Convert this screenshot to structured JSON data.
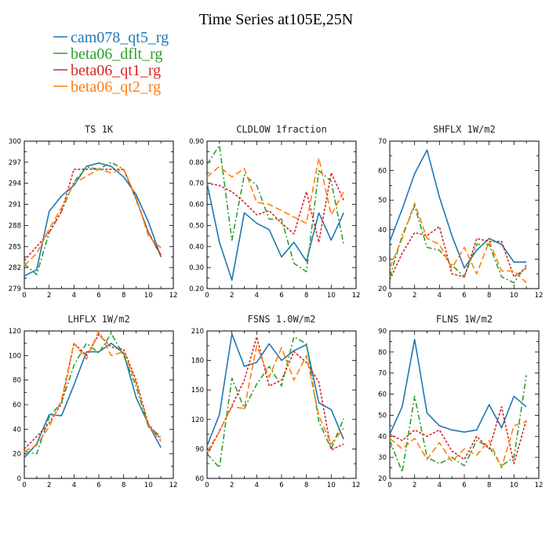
{
  "figure_title": "Time Series at105E,25N",
  "chart_data": [
    {
      "type": "line",
      "title": "TS",
      "unit": "1K",
      "xlim": [
        0,
        12
      ],
      "xticks": [
        0,
        2,
        4,
        6,
        8,
        10,
        12
      ],
      "ylim": [
        279,
        300
      ],
      "yticks": [
        279,
        282,
        285,
        288,
        291,
        294,
        297,
        300
      ],
      "x": [
        0,
        1,
        2,
        3,
        4,
        5,
        6,
        7,
        8,
        9,
        10,
        11
      ],
      "series": [
        {
          "name": "cam078_qt5_rg",
          "color": "#1f77b4",
          "dash": "",
          "values": [
            280.8,
            281.7,
            290.0,
            292.2,
            293.7,
            296.4,
            296.9,
            296.4,
            294.9,
            292.4,
            288.5,
            283.5
          ]
        },
        {
          "name": "beta06_dflt_rg",
          "color": "#2ca02c",
          "dash": "7,3,2,3",
          "values": [
            282.5,
            281.0,
            287.0,
            290.0,
            294.2,
            296.3,
            296.0,
            297.0,
            296.0,
            291.7,
            287.0,
            283.6
          ]
        },
        {
          "name": "beta06_qt1_rg",
          "color": "#d62728",
          "dash": "3,2",
          "values": [
            283.0,
            285.0,
            287.0,
            290.0,
            296.0,
            296.0,
            296.0,
            296.0,
            296.0,
            291.8,
            287.0,
            283.8
          ]
        },
        {
          "name": "beta06_qt2_rg",
          "color": "#ff7f0e",
          "dash": "8,4",
          "values": [
            282.3,
            284.0,
            287.5,
            290.5,
            294.0,
            295.0,
            296.0,
            295.5,
            296.0,
            292.0,
            286.5,
            284.8
          ]
        }
      ]
    },
    {
      "type": "line",
      "title": "CLDLOW",
      "unit": "1fraction",
      "xlim": [
        0,
        12
      ],
      "xticks": [
        0,
        2,
        4,
        6,
        8,
        10,
        12
      ],
      "ylim": [
        0.2,
        0.9
      ],
      "yticks": [
        "0.20",
        "0.30",
        "0.40",
        "0.50",
        "0.60",
        "0.70",
        "0.80",
        "0.90"
      ],
      "x": [
        0,
        1,
        2,
        3,
        4,
        5,
        6,
        7,
        8,
        9,
        10,
        11
      ],
      "series": [
        {
          "name": "cam078_qt5_rg",
          "color": "#1f77b4",
          "dash": "",
          "values": [
            0.7,
            0.42,
            0.24,
            0.56,
            0.51,
            0.48,
            0.35,
            0.42,
            0.33,
            0.56,
            0.43,
            0.56
          ]
        },
        {
          "name": "beta06_dflt_rg",
          "color": "#2ca02c",
          "dash": "7,3,2,3",
          "values": [
            0.79,
            0.88,
            0.43,
            0.74,
            0.69,
            0.53,
            0.53,
            0.32,
            0.28,
            0.76,
            0.71,
            0.41
          ]
        },
        {
          "name": "beta06_qt1_rg",
          "color": "#d62728",
          "dash": "3,2",
          "values": [
            0.7,
            0.69,
            0.66,
            0.61,
            0.55,
            0.57,
            0.51,
            0.46,
            0.66,
            0.42,
            0.75,
            0.62
          ]
        },
        {
          "name": "beta06_qt2_rg",
          "color": "#ff7f0e",
          "dash": "8,4",
          "values": [
            0.73,
            0.78,
            0.73,
            0.77,
            0.61,
            0.6,
            0.57,
            0.54,
            0.51,
            0.82,
            0.55,
            0.66
          ]
        }
      ]
    },
    {
      "type": "line",
      "title": "SHFLX",
      "unit": "1W/m2",
      "xlim": [
        0,
        12
      ],
      "xticks": [
        0,
        2,
        4,
        6,
        8,
        10,
        12
      ],
      "ylim": [
        20,
        70
      ],
      "yticks": [
        20,
        30,
        40,
        50,
        60,
        70
      ],
      "x": [
        0,
        1,
        2,
        3,
        4,
        5,
        6,
        7,
        8,
        9,
        10,
        11
      ],
      "series": [
        {
          "name": "cam078_qt5_rg",
          "color": "#1f77b4",
          "dash": "",
          "values": [
            36,
            47,
            59,
            67,
            51,
            38,
            27,
            33,
            37,
            35,
            29,
            29
          ]
        },
        {
          "name": "beta06_dflt_rg",
          "color": "#2ca02c",
          "dash": "7,3,2,3",
          "values": [
            24,
            38,
            48,
            34,
            33,
            28,
            24,
            35,
            35,
            24,
            22,
            28
          ]
        },
        {
          "name": "beta06_qt1_rg",
          "color": "#d62728",
          "dash": "3,2",
          "values": [
            23,
            32,
            39,
            38,
            41,
            25,
            24,
            37,
            36,
            36,
            24,
            27
          ]
        },
        {
          "name": "beta06_qt2_rg",
          "color": "#ff7f0e",
          "dash": "8,4",
          "values": [
            27,
            37,
            49,
            37,
            35,
            27,
            34,
            25,
            36,
            26,
            26,
            22
          ]
        }
      ]
    },
    {
      "type": "line",
      "title": "LHFLX",
      "unit": "1W/m2",
      "xlim": [
        0,
        12
      ],
      "xticks": [
        0,
        2,
        4,
        6,
        8,
        10,
        12
      ],
      "ylim": [
        0,
        120
      ],
      "yticks": [
        0,
        20,
        40,
        60,
        80,
        100,
        120
      ],
      "x": [
        0,
        1,
        2,
        3,
        4,
        5,
        6,
        7,
        8,
        9,
        10,
        11
      ],
      "series": [
        {
          "name": "cam078_qt5_rg",
          "color": "#1f77b4",
          "dash": "",
          "values": [
            17,
            28,
            52,
            51,
            76,
            103,
            103,
            110,
            102,
            66,
            44,
            25
          ]
        },
        {
          "name": "beta06_dflt_rg",
          "color": "#2ca02c",
          "dash": "7,3,2,3",
          "values": [
            22,
            20,
            50,
            62,
            92,
            110,
            102,
            118,
            100,
            75,
            42,
            34
          ]
        },
        {
          "name": "beta06_qt1_rg",
          "color": "#d62728",
          "dash": "3,2",
          "values": [
            24,
            34,
            45,
            61,
            110,
            100,
            117,
            107,
            105,
            80,
            44,
            32
          ]
        },
        {
          "name": "beta06_qt2_rg",
          "color": "#ff7f0e",
          "dash": "8,4",
          "values": [
            22,
            27,
            42,
            64,
            110,
            97,
            120,
            100,
            103,
            78,
            43,
            30
          ]
        }
      ]
    },
    {
      "type": "line",
      "title": "FSNS",
      "unit": "1.0W/m2",
      "xlim": [
        0,
        12
      ],
      "xticks": [
        0,
        2,
        4,
        6,
        8,
        10,
        12
      ],
      "ylim": [
        60,
        210
      ],
      "yticks": [
        60,
        90,
        120,
        150,
        180,
        210
      ],
      "x": [
        0,
        1,
        2,
        3,
        4,
        5,
        6,
        7,
        8,
        9,
        10,
        11
      ],
      "series": [
        {
          "name": "cam078_qt5_rg",
          "color": "#1f77b4",
          "dash": "",
          "values": [
            93,
            125,
            207,
            174,
            178,
            197,
            180,
            190,
            196,
            137,
            130,
            100
          ]
        },
        {
          "name": "beta06_dflt_rg",
          "color": "#2ca02c",
          "dash": "7,3,2,3",
          "values": [
            85,
            71,
            162,
            131,
            156,
            174,
            154,
            204,
            197,
            118,
            90,
            121
          ]
        },
        {
          "name": "beta06_qt1_rg",
          "color": "#d62728",
          "dash": "3,2",
          "values": [
            84,
            108,
            134,
            160,
            204,
            154,
            160,
            189,
            178,
            158,
            89,
            95
          ]
        },
        {
          "name": "beta06_qt2_rg",
          "color": "#ff7f0e",
          "dash": "8,4",
          "values": [
            87,
            108,
            133,
            131,
            195,
            163,
            193,
            160,
            185,
            124,
            95,
            111
          ]
        }
      ]
    },
    {
      "type": "line",
      "title": "FLNS",
      "unit": "1W/m2",
      "xlim": [
        0,
        12
      ],
      "xticks": [
        0,
        2,
        4,
        6,
        8,
        10,
        12
      ],
      "ylim": [
        20,
        90
      ],
      "yticks": [
        20,
        30,
        40,
        50,
        60,
        70,
        80,
        90
      ],
      "x": [
        0,
        1,
        2,
        3,
        4,
        5,
        6,
        7,
        8,
        9,
        10,
        11
      ],
      "series": [
        {
          "name": "cam078_qt5_rg",
          "color": "#1f77b4",
          "dash": "",
          "values": [
            41,
            54,
            86,
            51,
            45,
            43,
            42,
            43,
            55,
            44,
            59,
            54
          ]
        },
        {
          "name": "beta06_dflt_rg",
          "color": "#2ca02c",
          "dash": "7,3,2,3",
          "values": [
            38,
            23,
            59,
            30,
            27,
            30,
            26,
            38,
            35,
            26,
            30,
            69
          ]
        },
        {
          "name": "beta06_qt1_rg",
          "color": "#d62728",
          "dash": "3,2",
          "values": [
            41,
            38,
            43,
            40,
            43,
            33,
            29,
            40,
            34,
            54,
            27,
            48
          ]
        },
        {
          "name": "beta06_qt2_rg",
          "color": "#ff7f0e",
          "dash": "8,4",
          "values": [
            39,
            34,
            39,
            29,
            37,
            28,
            34,
            31,
            38,
            25,
            45,
            47
          ]
        }
      ]
    }
  ]
}
